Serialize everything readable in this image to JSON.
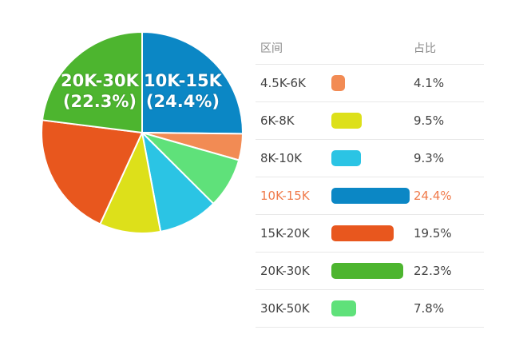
{
  "chart_data": {
    "type": "pie",
    "table_headers": {
      "range": "区间",
      "share": "占比"
    },
    "categories": [
      "4.5K-6K",
      "6K-8K",
      "8K-10K",
      "10K-15K",
      "15K-20K",
      "20K-30K",
      "30K-50K"
    ],
    "values": [
      4.1,
      9.5,
      9.3,
      24.4,
      19.5,
      22.3,
      7.8
    ],
    "value_labels": [
      "4.1%",
      "9.5%",
      "9.3%",
      "24.4%",
      "19.5%",
      "22.3%",
      "7.8%"
    ],
    "colors": [
      "#f28b54",
      "#dde01a",
      "#2bc4e4",
      "#0b87c5",
      "#e8571e",
      "#4db52f",
      "#5fe17a"
    ],
    "slice_order": [
      "10K-15K",
      "4.5K-6K",
      "30K-50K",
      "8K-10K",
      "6K-8K",
      "15K-20K",
      "20K-30K"
    ],
    "highlight": "10K-15K",
    "highlight_color": "#f07b4b",
    "pie_labels": [
      {
        "category": "20K-30K",
        "label": "20K-30K",
        "percent": "(22.3%)"
      },
      {
        "category": "10K-15K",
        "label": "10K-15K",
        "percent": "(24.4%)"
      }
    ]
  }
}
